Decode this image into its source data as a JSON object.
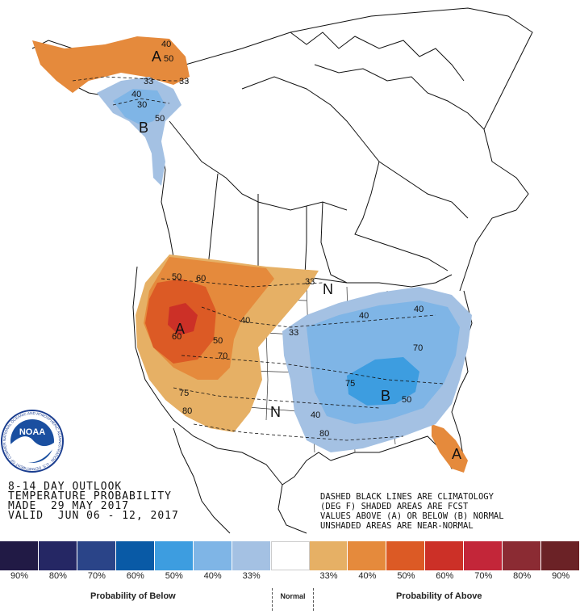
{
  "header": {
    "line1": "8-14 DAY OUTLOOK",
    "line2": "TEMPERATURE PROBABILITY",
    "line3": "MADE  29 MAY 2017",
    "line4": "VALID  JUN 06 - 12, 2017"
  },
  "notes": {
    "line1": "DASHED BLACK LINES ARE CLIMATOLOGY",
    "line2": "(DEG F) SHADED AREAS ARE FCST",
    "line3": "VALUES ABOVE (A) OR BELOW (B) NORMAL",
    "line4": "UNSHADED AREAS ARE NEAR-NORMAL"
  },
  "logo": {
    "text": "NOAA",
    "ring_text": "NATIONAL OCEANIC AND ATMOSPHERIC ADMINISTRATION · U.S. DEPARTMENT OF COMMERCE"
  },
  "map_labels": {
    "above": "A",
    "below": "B",
    "near_normal": "N",
    "contours": [
      "40",
      "50",
      "33",
      "40",
      "30",
      "50",
      "33",
      "50",
      "60",
      "40",
      "60",
      "70",
      "50",
      "75",
      "80",
      "33",
      "40",
      "40",
      "70",
      "75",
      "50",
      "40",
      "80",
      "33"
    ]
  },
  "legend": {
    "swatches": [
      {
        "color": "#211a45",
        "pct": "90%"
      },
      {
        "color": "#252764",
        "pct": "80%"
      },
      {
        "color": "#2a4488",
        "pct": "70%"
      },
      {
        "color": "#095aa6",
        "pct": "60%"
      },
      {
        "color": "#3d9de0",
        "pct": "50%"
      },
      {
        "color": "#7fb5e6",
        "pct": "40%"
      },
      {
        "color": "#a4c1e3",
        "pct": "33%"
      },
      {
        "color": "#ffffff",
        "pct": ""
      },
      {
        "color": "#e6b065",
        "pct": "33%"
      },
      {
        "color": "#e58a3c",
        "pct": "40%"
      },
      {
        "color": "#dc5a25",
        "pct": "50%"
      },
      {
        "color": "#cc3027",
        "pct": "60%"
      },
      {
        "color": "#c32639",
        "pct": "70%"
      },
      {
        "color": "#8b2b33",
        "pct": "80%"
      },
      {
        "color": "#6b2226",
        "pct": "90%"
      }
    ],
    "below_label": "Probability of Below",
    "normal_label": "Normal",
    "above_label": "Probability of Above"
  }
}
